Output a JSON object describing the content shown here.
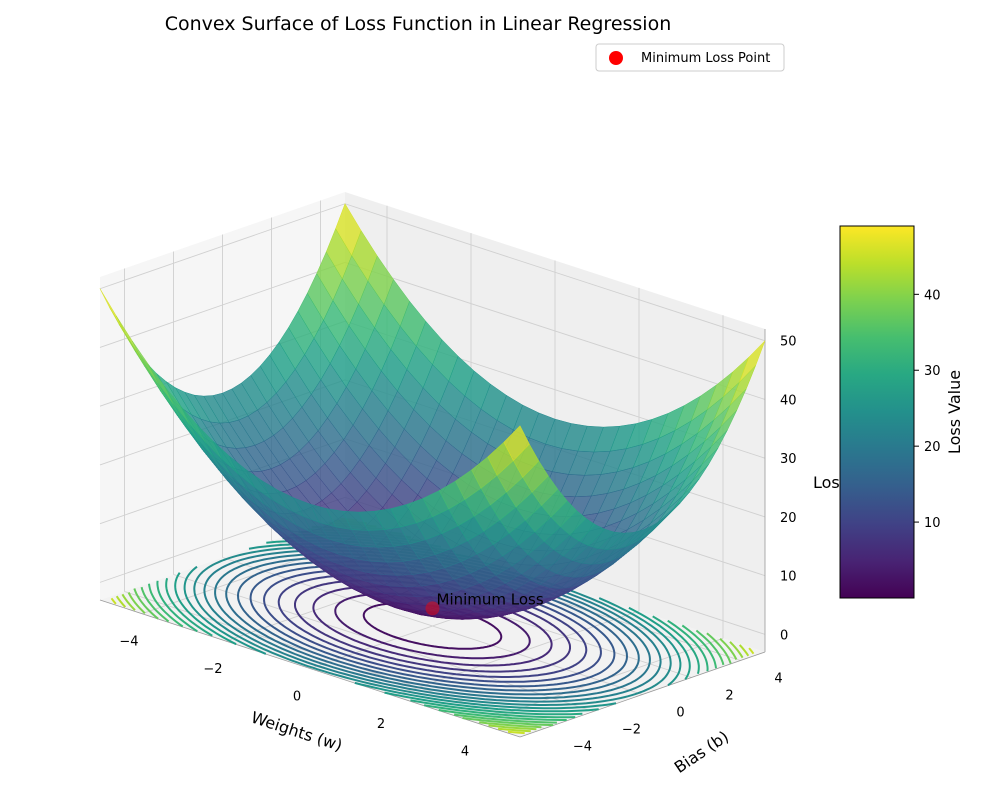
{
  "chart_data": {
    "type": "surface3d",
    "title": "Convex Surface of Loss Function in Linear Regression",
    "function": "Loss = w^2 + b^2",
    "x": {
      "label": "Weights (w)",
      "range": [
        -5,
        5
      ],
      "ticks": [
        -4,
        -2,
        0,
        2,
        4
      ]
    },
    "y": {
      "label": "Bias (b)",
      "range": [
        -5,
        5
      ],
      "ticks": [
        -4,
        -2,
        0,
        2,
        4
      ]
    },
    "z": {
      "label": "Loss",
      "range": [
        -3,
        52
      ],
      "ticks": [
        0,
        10,
        20,
        30,
        40,
        50
      ]
    },
    "grid": true,
    "colormap": "viridis",
    "colorbar": {
      "label": "Loss Value",
      "range": [
        0,
        49
      ],
      "ticks": [
        10,
        20,
        30,
        40
      ]
    },
    "contour_offset_z": -3,
    "minimum": {
      "w": 0,
      "b": 0,
      "loss": 0,
      "annotation": "Minimum Loss",
      "color": "#ff0000"
    },
    "legend": {
      "position": "top-right",
      "entries": [
        {
          "label": "Minimum Loss Point",
          "color": "#ff0000",
          "marker": "circle"
        }
      ]
    }
  }
}
